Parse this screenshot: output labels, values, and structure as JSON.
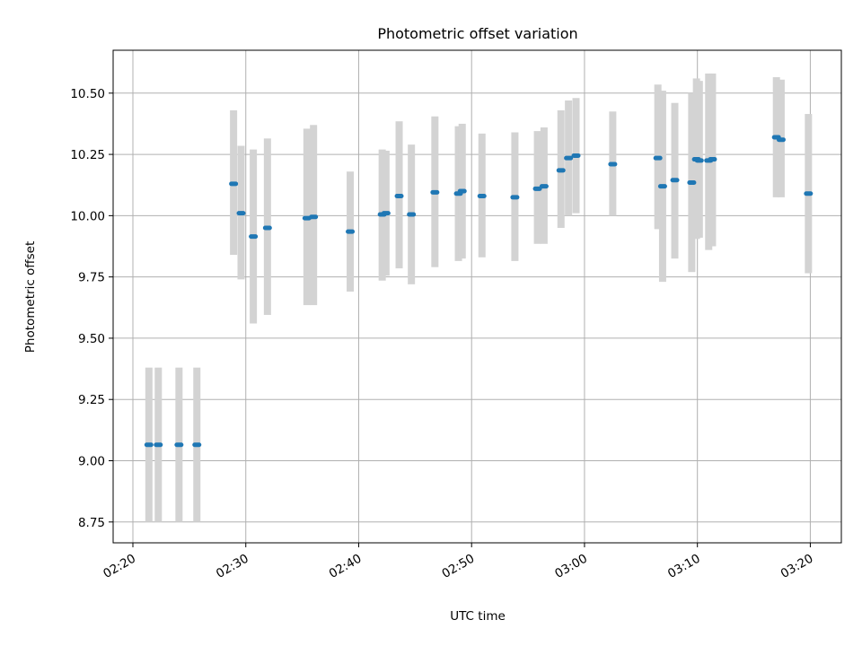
{
  "chart_data": {
    "type": "scatter",
    "title": "Photometric offset variation",
    "xlabel": "UTC time",
    "ylabel": "Photometric offset",
    "xlim": [
      "02:18:15",
      "03:22:45"
    ],
    "ylim": [
      8.665,
      10.675
    ],
    "x_ticks": [
      "02:20",
      "02:30",
      "02:40",
      "02:50",
      "03:00",
      "03:10",
      "03:20"
    ],
    "y_ticks": [
      "8.75",
      "9.00",
      "9.25",
      "9.50",
      "9.75",
      "10.00",
      "10.25",
      "10.50"
    ],
    "grid": true,
    "colors": {
      "marker": "#1f77b4",
      "errorbar": "#d3d3d3"
    },
    "series": [
      {
        "points": [
          {
            "t": "02:21:25",
            "y": 9.065,
            "low": 8.75,
            "high": 9.38
          },
          {
            "t": "02:22:15",
            "y": 9.065,
            "low": 8.75,
            "high": 9.38
          },
          {
            "t": "02:24:05",
            "y": 9.065,
            "low": 8.75,
            "high": 9.38
          },
          {
            "t": "02:25:40",
            "y": 9.065,
            "low": 8.75,
            "high": 9.38
          },
          {
            "t": "02:28:55",
            "y": 10.13,
            "low": 9.84,
            "high": 10.43
          },
          {
            "t": "02:29:35",
            "y": 10.01,
            "low": 9.74,
            "high": 10.285
          },
          {
            "t": "02:30:40",
            "y": 9.915,
            "low": 9.56,
            "high": 10.27
          },
          {
            "t": "02:31:55",
            "y": 9.95,
            "low": 9.595,
            "high": 10.315
          },
          {
            "t": "02:35:25",
            "y": 9.99,
            "low": 9.635,
            "high": 10.355
          },
          {
            "t": "02:36:00",
            "y": 9.995,
            "low": 9.635,
            "high": 10.37
          },
          {
            "t": "02:39:15",
            "y": 9.935,
            "low": 9.69,
            "high": 10.18
          },
          {
            "t": "02:42:05",
            "y": 10.005,
            "low": 9.735,
            "high": 10.27
          },
          {
            "t": "02:42:25",
            "y": 10.01,
            "low": 9.755,
            "high": 10.265
          },
          {
            "t": "02:43:35",
            "y": 10.08,
            "low": 9.785,
            "high": 10.385
          },
          {
            "t": "02:44:40",
            "y": 10.005,
            "low": 9.72,
            "high": 10.29
          },
          {
            "t": "02:46:45",
            "y": 10.095,
            "low": 9.79,
            "high": 10.405
          },
          {
            "t": "02:48:50",
            "y": 10.09,
            "low": 9.815,
            "high": 10.365
          },
          {
            "t": "02:49:10",
            "y": 10.1,
            "low": 9.825,
            "high": 10.375
          },
          {
            "t": "02:50:55",
            "y": 10.08,
            "low": 9.83,
            "high": 10.335
          },
          {
            "t": "02:53:50",
            "y": 10.075,
            "low": 9.815,
            "high": 10.34
          },
          {
            "t": "02:55:50",
            "y": 10.11,
            "low": 9.885,
            "high": 10.345
          },
          {
            "t": "02:56:25",
            "y": 10.12,
            "low": 9.885,
            "high": 10.36
          },
          {
            "t": "02:57:55",
            "y": 10.185,
            "low": 9.95,
            "high": 10.43
          },
          {
            "t": "02:58:35",
            "y": 10.235,
            "low": 10.0,
            "high": 10.47
          },
          {
            "t": "02:59:15",
            "y": 10.245,
            "low": 10.01,
            "high": 10.48
          },
          {
            "t": "03:02:30",
            "y": 10.21,
            "low": 10.0,
            "high": 10.425
          },
          {
            "t": "03:06:30",
            "y": 10.235,
            "low": 9.945,
            "high": 10.535
          },
          {
            "t": "03:06:55",
            "y": 10.12,
            "low": 9.73,
            "high": 10.51
          },
          {
            "t": "03:08:00",
            "y": 10.145,
            "low": 9.825,
            "high": 10.46
          },
          {
            "t": "03:09:30",
            "y": 10.135,
            "low": 9.77,
            "high": 10.5
          },
          {
            "t": "03:09:55",
            "y": 10.23,
            "low": 9.905,
            "high": 10.56
          },
          {
            "t": "03:10:10",
            "y": 10.225,
            "low": 9.91,
            "high": 10.55
          },
          {
            "t": "03:11:00",
            "y": 10.225,
            "low": 9.86,
            "high": 10.58
          },
          {
            "t": "03:11:20",
            "y": 10.23,
            "low": 9.875,
            "high": 10.58
          },
          {
            "t": "03:17:00",
            "y": 10.32,
            "low": 10.075,
            "high": 10.565
          },
          {
            "t": "03:17:25",
            "y": 10.31,
            "low": 10.075,
            "high": 10.555
          },
          {
            "t": "03:19:50",
            "y": 10.09,
            "low": 9.765,
            "high": 10.415
          }
        ]
      }
    ]
  }
}
